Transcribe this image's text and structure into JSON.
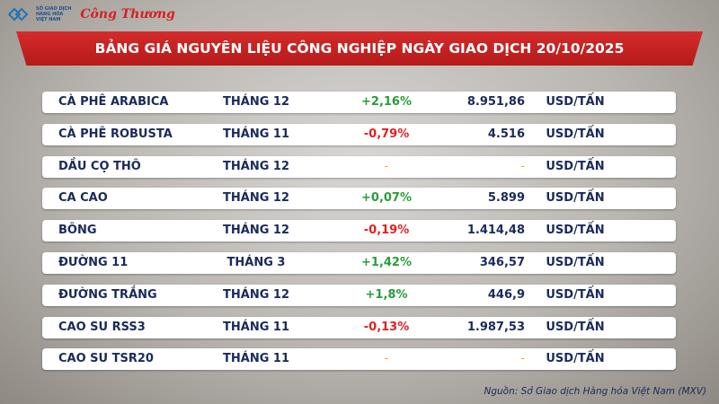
{
  "header": {
    "logo_lines": [
      "SỞ GIAO DỊCH",
      "HÀNG HÓA",
      "VIỆT NAM"
    ],
    "brand": "Công Thương",
    "title": "BẢNG GIÁ NGUYÊN LIỆU CÔNG NGHIỆP NGÀY GIAO DỊCH 20/10/2025"
  },
  "table": {
    "rows": [
      [
        "CÀ PHÊ ARABICA",
        "THÁNG 12",
        "+2,16%",
        "8.951,86",
        "USD/TẤN"
      ],
      [
        "CÀ PHÊ ROBUSTA",
        "THÁNG 11",
        "-0,79%",
        "4.516",
        "USD/TẤN"
      ],
      [
        "DẦU CỌ THÔ",
        "THÁNG 12",
        "-",
        "-",
        "USD/TẤN"
      ],
      [
        "CA CAO",
        "THÁNG 12",
        "+0,07%",
        "5.899",
        "USD/TẤN"
      ],
      [
        "BÔNG",
        "THÁNG 12",
        "-0,19%",
        "1.414,48",
        "USD/TẤN"
      ],
      [
        "ĐƯỜNG 11",
        "THÁNG 3",
        "+1,42%",
        "346,57",
        "USD/TẤN"
      ],
      [
        "ĐƯỜNG TRẮNG",
        "THÁNG 12",
        "+1,8%",
        "446,9",
        "USD/TẤN"
      ],
      [
        "CAO SU RSS3",
        "THÁNG 11",
        "-0,13%",
        "1.987,53",
        "USD/TẤN"
      ],
      [
        "CAO SU TSR20",
        "THÁNG 11",
        "-",
        "-",
        "USD/TẤN"
      ]
    ]
  },
  "footer": {
    "source": "Nguồn: Sở Giao dịch Hàng hóa Việt Nam (MXV)"
  }
}
